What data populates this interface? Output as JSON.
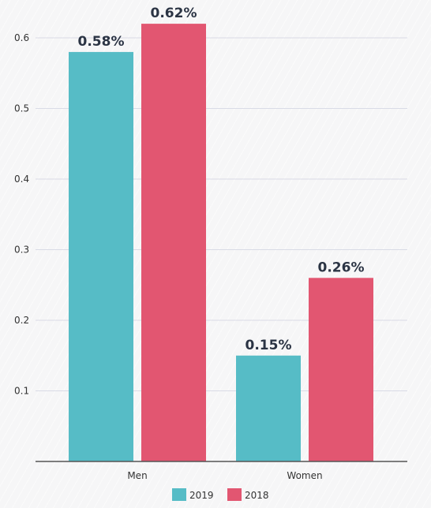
{
  "chart_data": {
    "type": "bar",
    "categories": [
      "Men",
      "Women"
    ],
    "series": [
      {
        "name": "2019",
        "values": [
          0.58,
          0.15
        ],
        "labels": [
          "0.58%",
          "0.15%"
        ],
        "color": "#56bcc6"
      },
      {
        "name": "2018",
        "values": [
          0.62,
          0.26
        ],
        "labels": [
          "0.62%",
          "0.26%"
        ],
        "color": "#e25671"
      }
    ],
    "yticks": [
      "0.1",
      "0.2",
      "0.3",
      "0.4",
      "0.5",
      "0.6"
    ],
    "ylim": [
      0,
      0.65
    ],
    "grid": true,
    "legend": "bottom-center",
    "title": "",
    "xlabel": "",
    "ylabel": ""
  }
}
